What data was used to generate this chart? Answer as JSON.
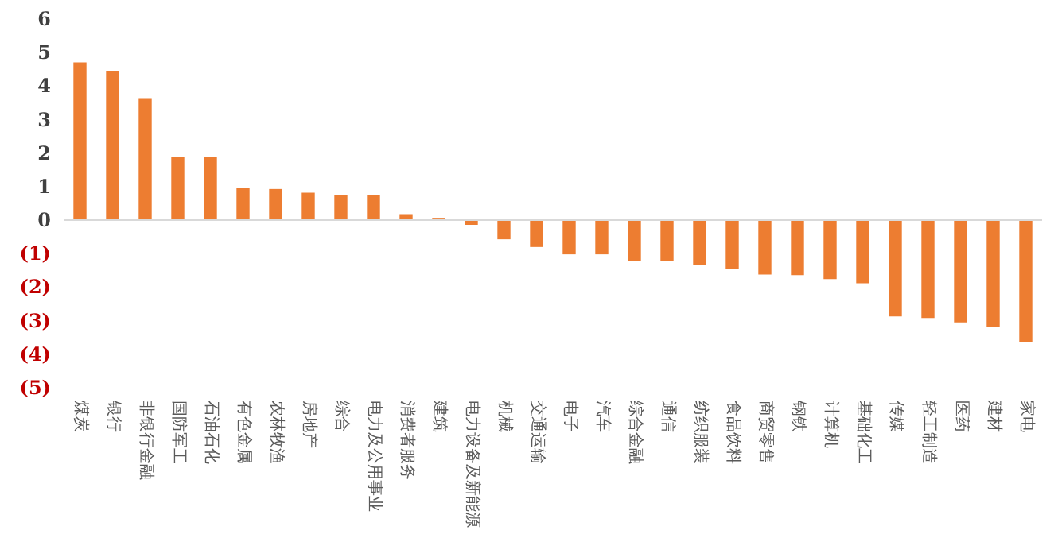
{
  "chart_data": {
    "type": "bar",
    "categories": [
      "煤炭",
      "银行",
      "非银行金融",
      "国防军工",
      "石油石化",
      "有色金属",
      "农林牧渔",
      "房地产",
      "综合",
      "电力及公用事业",
      "消费者服务",
      "建筑",
      "电力设备及新能源",
      "机械",
      "交通运输",
      "电子",
      "汽车",
      "综合金融",
      "通信",
      "纺织服装",
      "食品饮料",
      "商贸零售",
      "钢铁",
      "计算机",
      "基础化工",
      "传媒",
      "轻工制造",
      "医药",
      "建材",
      "家电"
    ],
    "values": [
      4.71,
      4.46,
      3.64,
      1.89,
      1.89,
      0.96,
      0.93,
      0.82,
      0.75,
      0.75,
      0.18,
      0.07,
      -0.14,
      -0.57,
      -0.8,
      -1.02,
      -1.02,
      -1.23,
      -1.23,
      -1.35,
      -1.46,
      -1.62,
      -1.64,
      -1.76,
      -1.88,
      -2.87,
      -2.92,
      -3.05,
      -3.19,
      -3.63
    ],
    "color": "#ed7d31",
    "ylim": [
      -5,
      6
    ],
    "yticks": [
      {
        "value": -5,
        "label": "(5)"
      },
      {
        "value": -4,
        "label": "(4)"
      },
      {
        "value": -3,
        "label": "(3)"
      },
      {
        "value": -2,
        "label": "(2)"
      },
      {
        "value": -1,
        "label": "(1)"
      },
      0,
      1,
      2,
      3,
      4,
      5,
      6
    ],
    "grid": false,
    "ref_lines": [
      {
        "axis": "y",
        "value": 0,
        "color": "#d9d9d9"
      }
    ]
  }
}
